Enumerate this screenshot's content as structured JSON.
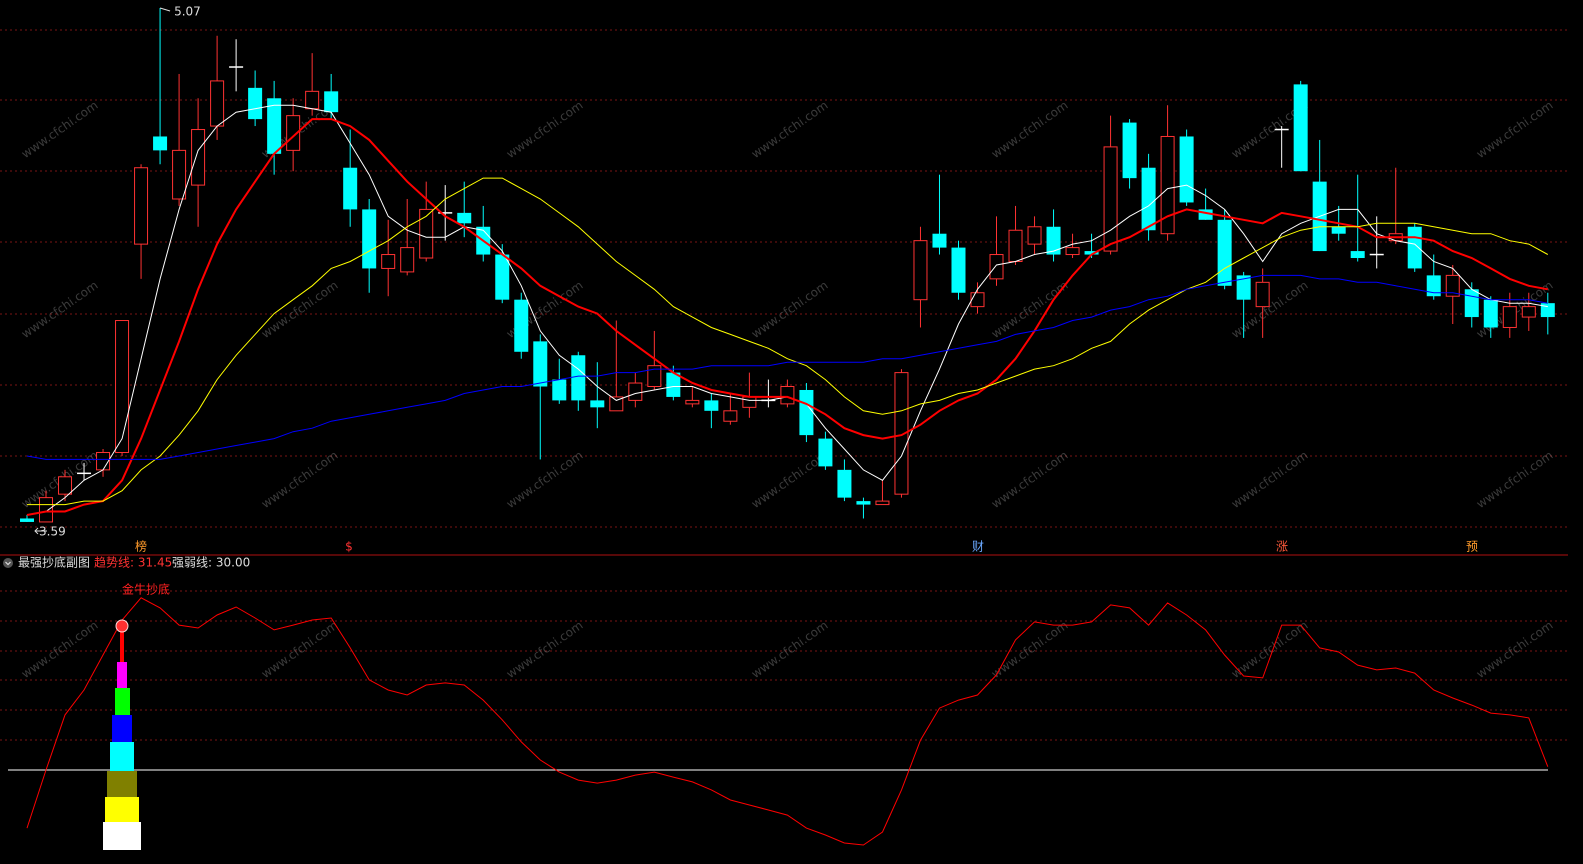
{
  "chart_data": [
    {
      "type": "candlestick",
      "open": [
        3.6,
        3.59,
        3.67,
        3.73,
        3.74,
        3.79,
        4.39,
        4.7,
        4.52,
        4.56,
        4.73,
        4.9,
        4.84,
        4.81,
        4.66,
        4.78,
        4.83,
        4.61,
        4.49,
        4.32,
        4.31,
        4.35,
        4.48,
        4.48,
        4.44,
        4.36,
        4.23,
        4.11,
        4.0,
        4.07,
        3.94,
        3.91,
        3.94,
        3.98,
        4.02,
        3.93,
        3.94,
        3.88,
        3.92,
        3.94,
        3.93,
        3.97,
        3.83,
        3.74,
        3.65,
        3.64,
        3.67,
        4.23,
        4.42,
        4.38,
        4.21,
        4.29,
        4.34,
        4.39,
        4.44,
        4.36,
        4.37,
        4.37,
        4.74,
        4.61,
        4.42,
        4.7,
        4.49,
        4.46,
        4.3,
        4.21,
        4.72,
        4.85,
        4.57,
        4.44,
        4.37,
        4.36,
        4.4,
        4.44,
        4.3,
        4.24,
        4.26,
        4.23,
        4.15,
        4.18,
        4.22
      ],
      "high": [
        3.61,
        3.68,
        3.74,
        3.76,
        3.8,
        4.17,
        4.62,
        5.07,
        4.88,
        4.81,
        4.99,
        4.98,
        4.89,
        4.86,
        4.81,
        4.94,
        4.88,
        4.72,
        4.52,
        4.46,
        4.52,
        4.57,
        4.56,
        4.57,
        4.5,
        4.39,
        4.25,
        4.13,
        4.06,
        4.08,
        4.05,
        4.17,
        4.02,
        4.14,
        4.04,
        3.98,
        3.96,
        3.96,
        4.02,
        4.0,
        4.0,
        3.99,
        3.85,
        3.77,
        3.66,
        3.71,
        4.03,
        4.44,
        4.59,
        4.4,
        4.28,
        4.47,
        4.5,
        4.47,
        4.49,
        4.42,
        4.42,
        4.76,
        4.75,
        4.65,
        4.79,
        4.72,
        4.55,
        4.49,
        4.31,
        4.32,
        4.73,
        4.86,
        4.69,
        4.5,
        4.59,
        4.47,
        4.61,
        4.45,
        4.36,
        4.33,
        4.28,
        4.24,
        4.25,
        4.25,
        4.25
      ],
      "low": [
        3.59,
        3.59,
        3.65,
        3.71,
        3.72,
        3.78,
        4.29,
        4.62,
        4.5,
        4.44,
        4.69,
        4.83,
        4.73,
        4.59,
        4.6,
        4.76,
        4.75,
        4.44,
        4.25,
        4.24,
        4.3,
        4.34,
        4.4,
        4.41,
        4.34,
        4.22,
        4.06,
        3.77,
        3.93,
        3.91,
        3.86,
        3.91,
        3.92,
        3.97,
        3.94,
        3.92,
        3.86,
        3.87,
        3.89,
        3.92,
        3.92,
        3.82,
        3.74,
        3.65,
        3.6,
        3.64,
        3.66,
        4.15,
        4.36,
        4.23,
        4.19,
        4.27,
        4.33,
        4.36,
        4.34,
        4.35,
        4.35,
        4.36,
        4.55,
        4.4,
        4.4,
        4.5,
        4.46,
        4.26,
        4.12,
        4.12,
        4.61,
        4.6,
        4.37,
        4.4,
        4.34,
        4.32,
        4.39,
        4.31,
        4.23,
        4.16,
        4.15,
        4.12,
        4.12,
        4.14,
        4.13
      ],
      "close": [
        3.59,
        3.66,
        3.72,
        3.73,
        3.79,
        4.17,
        4.61,
        4.66,
        4.66,
        4.72,
        4.86,
        4.9,
        4.75,
        4.65,
        4.76,
        4.83,
        4.77,
        4.49,
        4.32,
        4.36,
        4.38,
        4.49,
        4.48,
        4.45,
        4.36,
        4.23,
        4.08,
        3.98,
        3.94,
        3.94,
        3.92,
        3.95,
        3.99,
        4.04,
        3.95,
        3.94,
        3.91,
        3.91,
        3.95,
        3.94,
        3.98,
        3.84,
        3.75,
        3.66,
        3.64,
        3.65,
        4.02,
        4.4,
        4.38,
        4.25,
        4.25,
        4.36,
        4.43,
        4.44,
        4.36,
        4.38,
        4.36,
        4.67,
        4.58,
        4.43,
        4.7,
        4.51,
        4.46,
        4.27,
        4.23,
        4.28,
        4.72,
        4.6,
        4.37,
        4.42,
        4.35,
        4.36,
        4.42,
        4.32,
        4.24,
        4.3,
        4.18,
        4.15,
        4.21,
        4.21,
        4.18
      ],
      "series": [
        {
          "color": "#ffffff",
          "values": [
            3.61,
            3.62,
            3.66,
            3.71,
            3.74,
            3.83,
            4.06,
            4.29,
            4.49,
            4.66,
            4.73,
            4.77,
            4.78,
            4.79,
            4.79,
            4.78,
            4.77,
            4.68,
            4.59,
            4.47,
            4.43,
            4.41,
            4.41,
            4.44,
            4.43,
            4.37,
            4.27,
            4.14,
            4.07,
            4.03,
            3.98,
            3.94,
            3.96,
            3.97,
            3.98,
            3.98,
            3.96,
            3.95,
            3.94,
            3.94,
            3.95,
            3.93,
            3.86,
            3.8,
            3.74,
            3.71,
            3.78,
            3.91,
            4.03,
            4.16,
            4.26,
            4.33,
            4.34,
            4.36,
            4.37,
            4.39,
            4.4,
            4.43,
            4.47,
            4.5,
            4.55,
            4.56,
            4.53,
            4.49,
            4.42,
            4.34,
            4.42,
            4.45,
            4.47,
            4.49,
            4.49,
            4.42,
            4.4,
            4.39,
            4.34,
            4.32,
            4.26,
            4.23,
            4.22,
            4.22,
            4.21
          ]
        },
        {
          "color": "#ff0000",
          "values": [
            3.61,
            3.62,
            3.62,
            3.64,
            3.65,
            3.71,
            3.83,
            3.97,
            4.11,
            4.26,
            4.39,
            4.49,
            4.57,
            4.65,
            4.7,
            4.75,
            4.75,
            4.73,
            4.69,
            4.63,
            4.57,
            4.52,
            4.47,
            4.44,
            4.4,
            4.36,
            4.32,
            4.27,
            4.24,
            4.21,
            4.19,
            4.14,
            4.1,
            4.06,
            4.02,
            3.99,
            3.97,
            3.96,
            3.95,
            3.95,
            3.95,
            3.93,
            3.9,
            3.86,
            3.84,
            3.83,
            3.84,
            3.87,
            3.91,
            3.94,
            3.96,
            4.0,
            4.06,
            4.14,
            4.23,
            4.3,
            4.36,
            4.39,
            4.41,
            4.44,
            4.47,
            4.49,
            4.48,
            4.47,
            4.46,
            4.45,
            4.48,
            4.47,
            4.46,
            4.45,
            4.44,
            4.41,
            4.41,
            4.41,
            4.4,
            4.37,
            4.35,
            4.32,
            4.29,
            4.27,
            4.26
          ]
        },
        {
          "color": "#ffff00",
          "values": [
            3.64,
            3.64,
            3.64,
            3.65,
            3.65,
            3.68,
            3.74,
            3.78,
            3.84,
            3.91,
            4.0,
            4.07,
            4.13,
            4.19,
            4.23,
            4.27,
            4.32,
            4.34,
            4.37,
            4.4,
            4.44,
            4.47,
            4.52,
            4.55,
            4.58,
            4.58,
            4.55,
            4.52,
            4.48,
            4.44,
            4.39,
            4.34,
            4.3,
            4.26,
            4.21,
            4.18,
            4.15,
            4.13,
            4.11,
            4.09,
            4.06,
            4.04,
            4.0,
            3.95,
            3.91,
            3.9,
            3.91,
            3.93,
            3.94,
            3.96,
            3.97,
            3.99,
            4.01,
            4.03,
            4.04,
            4.06,
            4.09,
            4.11,
            4.16,
            4.2,
            4.23,
            4.26,
            4.28,
            4.32,
            4.35,
            4.38,
            4.41,
            4.43,
            4.44,
            4.44,
            4.44,
            4.45,
            4.45,
            4.45,
            4.44,
            4.43,
            4.42,
            4.42,
            4.4,
            4.39,
            4.36
          ]
        },
        {
          "color": "#0000ff",
          "values": [
            3.78,
            3.77,
            3.77,
            3.77,
            3.77,
            3.77,
            3.77,
            3.77,
            3.78,
            3.79,
            3.8,
            3.81,
            3.82,
            3.83,
            3.85,
            3.86,
            3.88,
            3.89,
            3.9,
            3.91,
            3.92,
            3.93,
            3.94,
            3.96,
            3.97,
            3.98,
            3.98,
            3.99,
            4.0,
            4.01,
            4.01,
            4.02,
            4.02,
            4.03,
            4.03,
            4.03,
            4.04,
            4.04,
            4.04,
            4.04,
            4.05,
            4.05,
            4.05,
            4.05,
            4.05,
            4.06,
            4.06,
            4.07,
            4.08,
            4.09,
            4.1,
            4.11,
            4.13,
            4.14,
            4.15,
            4.17,
            4.18,
            4.2,
            4.21,
            4.23,
            4.24,
            4.26,
            4.27,
            4.28,
            4.29,
            4.3,
            4.3,
            4.3,
            4.29,
            4.29,
            4.28,
            4.28,
            4.27,
            4.26,
            4.25,
            4.25,
            4.24,
            4.23,
            4.23,
            4.23,
            4.22
          ]
        }
      ],
      "ylim": [
        3.538,
        5.093
      ],
      "high_label": 5.07,
      "low_label": 3.59,
      "markers": [
        "榜",
        "$",
        "财",
        "涨",
        "预"
      ],
      "watermark": "www.cfchi.com"
    },
    {
      "type": "line",
      "title": "最强抄底副图",
      "legend": [
        "趋势线: 31.45",
        "强弱线: 30.00"
      ],
      "signal": "金牛抄底",
      "series": [
        {
          "color": "#ff0000",
          "values": [
            4.6,
            30.0,
            54.1,
            65.0,
            80.3,
            95.6,
            105.3,
            100.9,
            93.4,
            92.1,
            97.8,
            101.3,
            96.5,
            91.3,
            93.4,
            95.6,
            96.5,
            83.4,
            69.4,
            65.0,
            62.8,
            67.2,
            68.1,
            67.2,
            60.6,
            51.9,
            42.3,
            34.4,
            29.1,
            25.6,
            24.3,
            25.6,
            27.8,
            29.1,
            26.9,
            24.8,
            21.3,
            16.9,
            14.7,
            12.5,
            10.3,
            4.6,
            1.6,
            -1.9,
            -2.8,
            2.9,
            21.3,
            43.1,
            57.1,
            60.6,
            62.8,
            71.6,
            86.9,
            94.8,
            93.4,
            93.4,
            94.8,
            102.2,
            100.9,
            93.4,
            103.1,
            97.8,
            91.3,
            80.3,
            71.1,
            70.3,
            93.4,
            93.4,
            83.4,
            81.6,
            75.9,
            73.8,
            74.6,
            72.4,
            65.0,
            61.5,
            58.4,
            54.9,
            54.1,
            52.8,
            31.45
          ]
        }
      ],
      "reference": {
        "value": 30,
        "color": "#ffffff"
      },
      "ylim": [
        -7.6,
        123.6
      ]
    }
  ]
}
